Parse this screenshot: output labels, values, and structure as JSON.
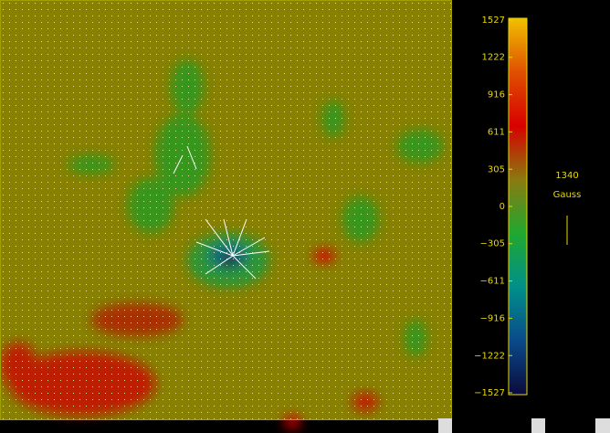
{
  "chart_data": {
    "type": "heatmap",
    "colorbar": {
      "ylim": [
        -1527,
        1527
      ],
      "yticks": [
        1527,
        1222,
        916,
        611,
        305,
        0,
        {
          "value": -305,
          "label": "−305"
        },
        {
          "value": -611,
          "label": "−611"
        },
        {
          "value": -916,
          "label": "−916"
        },
        {
          "value": -1222,
          "label": "−1222"
        },
        {
          "value": -1527,
          "label": "−1527"
        }
      ],
      "colors": [
        "#0a0a3c",
        "#0a4a8a",
        "#00908a",
        "#20a830",
        "#8a7a10",
        "#d80000",
        "#e05000",
        "#f0c000"
      ]
    },
    "vector_scale": {
      "value": 1340,
      "label": "Gauss"
    },
    "text_color": "#e8d800"
  }
}
